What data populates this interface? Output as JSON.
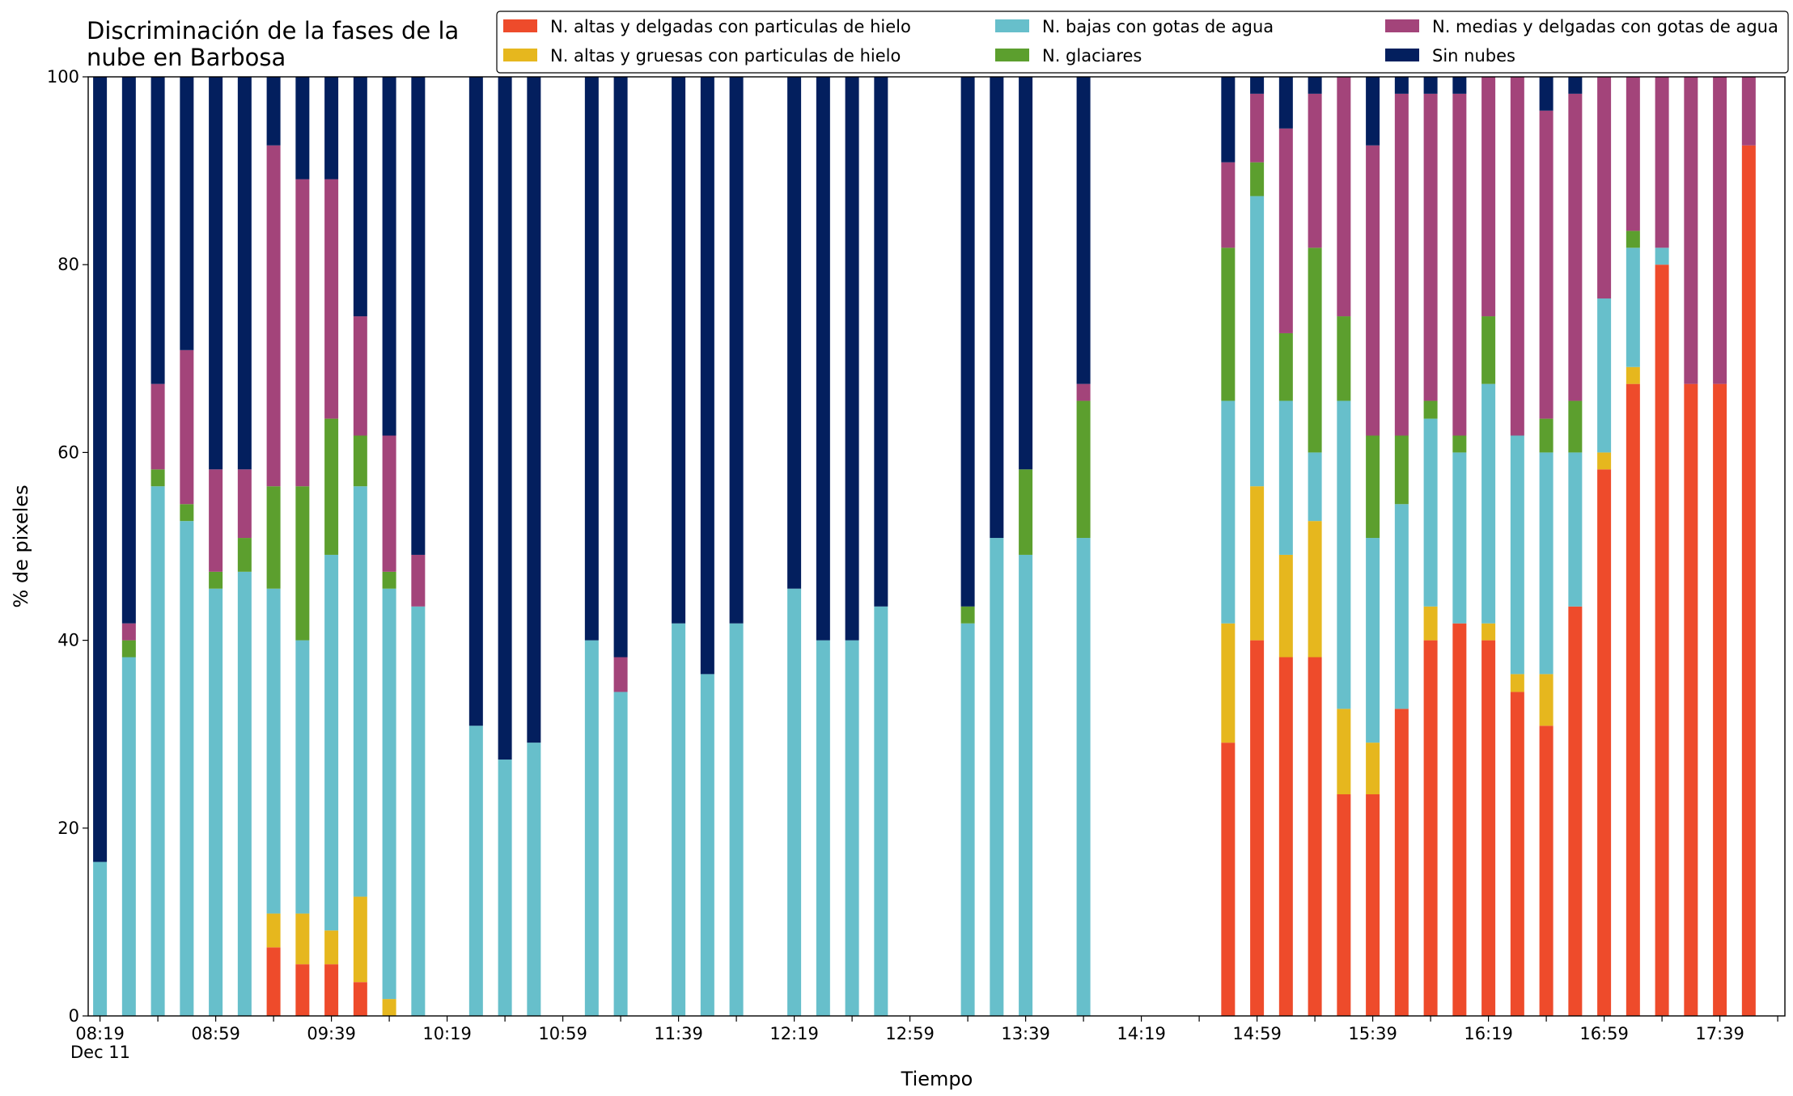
{
  "chart_data": {
    "type": "stacked_bar",
    "stacked": true,
    "title": "Discriminación de la fases de la\nnube en Barbosa",
    "xlabel": "Tiempo",
    "ylabel": "% de pixeles",
    "x_sublabel": "Dec 11",
    "categories": [
      "08:19",
      null,
      null,
      null,
      "08:59",
      null,
      null,
      null,
      "09:39",
      null,
      null,
      null,
      "10:19",
      null,
      null,
      null,
      "10:59",
      null,
      null,
      null,
      "11:39",
      null,
      null,
      null,
      "12:19",
      null,
      null,
      null,
      "12:59",
      null,
      null,
      null,
      "13:39",
      null,
      null,
      null,
      "14:19",
      null,
      null,
      null,
      "14:59",
      null,
      null,
      null,
      "15:39",
      null,
      null,
      null,
      "16:19",
      null,
      null,
      null,
      "16:59",
      null,
      null,
      null,
      "17:39",
      null
    ],
    "ylim": [
      0,
      100
    ],
    "yticks": [
      0,
      20,
      40,
      60,
      80,
      100
    ],
    "legend": "upper right",
    "grid": false,
    "series": [
      {
        "name": "N. altas y delgadas con particulas de hielo",
        "color": "#ee4b2b",
        "values": [
          0,
          0,
          0,
          0,
          0,
          0,
          7.3,
          5.5,
          5.5,
          3.6,
          0,
          0,
          null,
          0,
          0,
          0,
          null,
          0,
          0,
          null,
          0,
          0,
          0,
          null,
          0,
          0,
          0,
          0,
          null,
          null,
          0,
          0,
          0,
          null,
          0,
          null,
          null,
          null,
          null,
          29.1,
          40,
          38.2,
          38.2,
          23.6,
          23.6,
          32.7,
          40,
          41.8,
          40,
          34.5,
          30.9,
          43.6,
          58.2,
          67.3,
          80,
          67.3,
          67.3,
          92.7
        ]
      },
      {
        "name": "N. altas y gruesas con particulas de hielo",
        "color": "#e6b71e",
        "values": [
          0,
          0,
          0,
          0,
          0,
          0,
          3.6,
          5.4,
          3.6,
          9.1,
          1.8,
          0,
          null,
          0,
          0,
          0,
          null,
          0,
          0,
          null,
          0,
          0,
          0,
          null,
          0,
          0,
          0,
          0,
          null,
          null,
          0,
          0,
          0,
          null,
          0,
          null,
          null,
          null,
          null,
          12.7,
          16.4,
          10.9,
          14.5,
          9.1,
          5.5,
          0,
          3.6,
          0,
          1.8,
          1.9,
          5.5,
          0,
          1.8,
          1.8,
          0,
          0,
          0,
          0
        ]
      },
      {
        "name": "N. bajas con gotas de agua",
        "color": "#67bfcb",
        "values": [
          16.4,
          38.2,
          56.4,
          52.7,
          45.5,
          47.3,
          34.6,
          29.1,
          40,
          43.7,
          43.7,
          43.6,
          null,
          30.9,
          27.3,
          29.1,
          null,
          40,
          34.5,
          null,
          41.8,
          36.4,
          41.8,
          null,
          45.5,
          40,
          40,
          43.6,
          null,
          null,
          41.8,
          50.9,
          49.1,
          null,
          50.9,
          null,
          null,
          null,
          null,
          23.7,
          30.9,
          16.4,
          7.3,
          32.8,
          21.8,
          21.8,
          20,
          18.2,
          25.5,
          25.4,
          23.6,
          16.4,
          16.4,
          12.7,
          1.8,
          0,
          0,
          0
        ]
      },
      {
        "name": "N. glaciares",
        "color": "#5c9f2e",
        "values": [
          0,
          1.8,
          1.8,
          1.8,
          1.8,
          3.6,
          10.9,
          16.4,
          14.5,
          5.4,
          1.8,
          0,
          null,
          0,
          0,
          0,
          null,
          0,
          0,
          null,
          0,
          0,
          0,
          null,
          0,
          0,
          0,
          0,
          null,
          null,
          1.8,
          0,
          9.1,
          null,
          14.6,
          null,
          null,
          null,
          null,
          16.3,
          3.6,
          7.2,
          21.8,
          9,
          10.9,
          7.3,
          1.9,
          1.8,
          7.2,
          0,
          3.6,
          5.5,
          0,
          1.8,
          0,
          0,
          0,
          0
        ]
      },
      {
        "name": "N. medias y delgadas con gotas de agua",
        "color": "#a3447a",
        "values": [
          0,
          1.8,
          9.1,
          16.4,
          10.9,
          7.3,
          36.3,
          32.7,
          25.5,
          12.7,
          14.5,
          5.5,
          null,
          0,
          0,
          0,
          null,
          0,
          3.7,
          null,
          0,
          0,
          0,
          null,
          0,
          0,
          0,
          0,
          null,
          null,
          0,
          0,
          0,
          null,
          1.8,
          null,
          null,
          null,
          null,
          9.1,
          7.3,
          21.8,
          16.4,
          25.5,
          30.9,
          36.4,
          32.7,
          36.4,
          25.5,
          38.2,
          32.8,
          32.7,
          23.6,
          16.4,
          18.2,
          32.7,
          32.7,
          7.3
        ]
      },
      {
        "name": "Sin nubes",
        "color": "#031f5e",
        "values": [
          83.6,
          58.2,
          32.7,
          29.1,
          41.8,
          41.8,
          7.3,
          10.9,
          10.9,
          25.5,
          38.2,
          50.9,
          null,
          69.1,
          72.7,
          70.9,
          null,
          60,
          61.8,
          null,
          58.2,
          63.6,
          58.2,
          null,
          54.5,
          60,
          60,
          56.4,
          null,
          null,
          56.4,
          49.1,
          41.8,
          null,
          32.7,
          null,
          null,
          null,
          null,
          9.1,
          1.8,
          5.5,
          1.8,
          0,
          7.3,
          1.8,
          1.8,
          1.8,
          0,
          0,
          3.6,
          1.8,
          0,
          0,
          0,
          0,
          0,
          0
        ]
      }
    ]
  }
}
